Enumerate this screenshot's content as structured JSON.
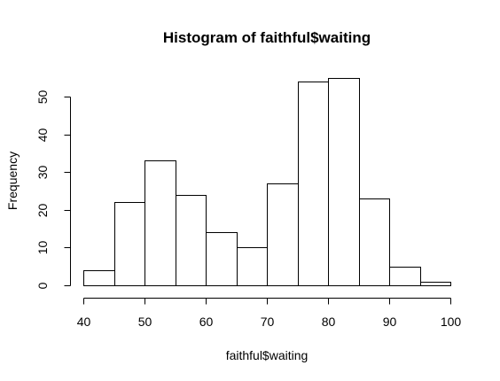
{
  "chart_data": {
    "type": "bar",
    "title": "Histogram of faithful$waiting",
    "xlabel": "faithful$waiting",
    "ylabel": "Frequency",
    "bins": [
      {
        "start": 40,
        "end": 45,
        "count": 4
      },
      {
        "start": 45,
        "end": 50,
        "count": 22
      },
      {
        "start": 50,
        "end": 55,
        "count": 33
      },
      {
        "start": 55,
        "end": 60,
        "count": 24
      },
      {
        "start": 60,
        "end": 65,
        "count": 14
      },
      {
        "start": 65,
        "end": 70,
        "count": 10
      },
      {
        "start": 70,
        "end": 75,
        "count": 27
      },
      {
        "start": 75,
        "end": 80,
        "count": 54
      },
      {
        "start": 80,
        "end": 85,
        "count": 55
      },
      {
        "start": 85,
        "end": 90,
        "count": 23
      },
      {
        "start": 90,
        "end": 95,
        "count": 5
      },
      {
        "start": 95,
        "end": 100,
        "count": 1
      }
    ],
    "xlim": [
      40,
      100
    ],
    "ylim": [
      0,
      55
    ],
    "x_ticks": [
      "40",
      "50",
      "60",
      "70",
      "80",
      "90",
      "100"
    ],
    "y_ticks": [
      "0",
      "10",
      "20",
      "30",
      "40",
      "50"
    ],
    "grid": false,
    "legend": "none",
    "bar_fill": "#ffffff",
    "bar_stroke": "#000000"
  }
}
